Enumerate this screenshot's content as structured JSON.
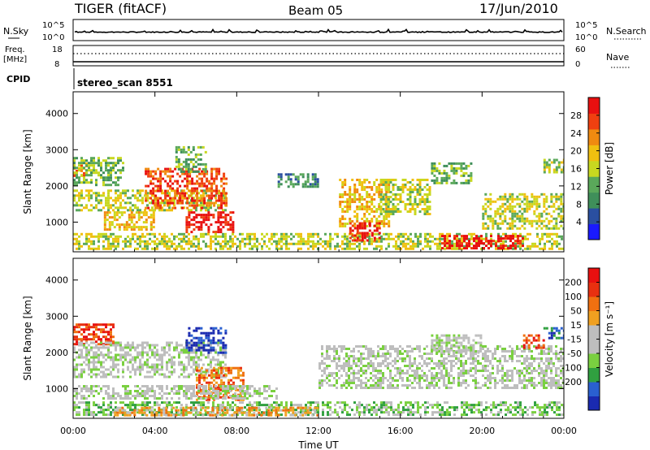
{
  "header": {
    "radar": "TIGER (fitACF)",
    "beam": "Beam 05",
    "date": "17/Jun/2010"
  },
  "top_panels": {
    "nsky_label": "N.Sky",
    "nsearch_label": "N.Search",
    "nsky_ticks": [
      "10^5",
      "10^0"
    ],
    "freq_label_1": "Freq.",
    "freq_label_2": "[MHz]",
    "freq_ticks": [
      "18",
      "8"
    ],
    "nave_label": "Nave",
    "nave_ticks": [
      "60",
      "0"
    ],
    "cpid_label": "CPID",
    "cpid_value": "stereo_scan 8551"
  },
  "colors": {
    "power": [
      "#1a1aff",
      "#2a4fa0",
      "#3f8f5a",
      "#5aa85a",
      "#c8d820",
      "#f0c010",
      "#f08a10",
      "#f04010",
      "#e81010"
    ],
    "velocity": [
      "#1a2ab0",
      "#2a60d0",
      "#30a040",
      "#7ad040",
      "#bebebe",
      "#bebebe",
      "#f0a020",
      "#f07010",
      "#e83010",
      "#e81010"
    ]
  },
  "chart_data": [
    {
      "type": "heatmap",
      "title": "",
      "xlabel": "Time UT",
      "ylabel": "Slant Range [km]",
      "x_ticks": [
        "00:00",
        "04:00",
        "08:00",
        "12:00",
        "16:00",
        "20:00",
        "00:00"
      ],
      "x_range_hours": [
        0,
        24
      ],
      "y_ticks": [
        1000,
        2000,
        3000,
        4000
      ],
      "ylim": [
        180,
        4600
      ],
      "colorbar": {
        "label": "Power [dB]",
        "ticks": [
          4,
          8,
          12,
          16,
          20,
          24,
          28
        ],
        "range": [
          0,
          32
        ]
      },
      "echo_regions": [
        {
          "t0": 0.0,
          "t1": 0.6,
          "r0": 2250,
          "r1": 2650,
          "level": 6
        },
        {
          "t0": 0.0,
          "t1": 2.5,
          "r0": 2050,
          "r1": 2800,
          "level": 3
        },
        {
          "t0": 0.0,
          "t1": 7.5,
          "r0": 1300,
          "r1": 1900,
          "level": 4
        },
        {
          "t0": 3.5,
          "t1": 7.5,
          "r0": 1400,
          "r1": 2500,
          "level": 7
        },
        {
          "t0": 1.5,
          "t1": 4.0,
          "r0": 800,
          "r1": 1300,
          "level": 5
        },
        {
          "t0": 5.5,
          "t1": 7.8,
          "r0": 700,
          "r1": 1300,
          "level": 8
        },
        {
          "t0": 0.0,
          "t1": 24.0,
          "r0": 250,
          "r1": 700,
          "level": 4
        },
        {
          "t0": 5.0,
          "t1": 6.5,
          "r0": 2400,
          "r1": 3100,
          "level": 3
        },
        {
          "t0": 10.0,
          "t1": 12.0,
          "r0": 2000,
          "r1": 2350,
          "level": 2
        },
        {
          "t0": 13.0,
          "t1": 15.5,
          "r0": 900,
          "r1": 2200,
          "level": 5
        },
        {
          "t0": 13.5,
          "t1": 15.0,
          "r0": 500,
          "r1": 1000,
          "level": 8
        },
        {
          "t0": 15.0,
          "t1": 17.5,
          "r0": 1200,
          "r1": 2200,
          "level": 4
        },
        {
          "t0": 17.5,
          "t1": 19.5,
          "r0": 2100,
          "r1": 2650,
          "level": 3
        },
        {
          "t0": 20.0,
          "t1": 24.0,
          "r0": 800,
          "r1": 1800,
          "level": 4
        },
        {
          "t0": 18.0,
          "t1": 22.0,
          "r0": 300,
          "r1": 650,
          "level": 8
        },
        {
          "t0": 23.0,
          "t1": 24.0,
          "r0": 2400,
          "r1": 2750,
          "level": 4
        }
      ]
    },
    {
      "type": "heatmap",
      "title": "",
      "xlabel": "Time UT",
      "ylabel": "Slant Range [km]",
      "x_ticks": [
        "00:00",
        "04:00",
        "08:00",
        "12:00",
        "16:00",
        "20:00",
        "00:00"
      ],
      "x_range_hours": [
        0,
        24
      ],
      "y_ticks": [
        1000,
        2000,
        3000,
        4000
      ],
      "ylim": [
        180,
        4600
      ],
      "colorbar": {
        "label": "Velocity [m s⁻¹]",
        "ticks": [
          200,
          100,
          50,
          15,
          -15,
          -50,
          -100,
          -200
        ],
        "range": [
          -250,
          250
        ]
      },
      "echo_regions": [
        {
          "t0": 0.0,
          "t1": 2.0,
          "r0": 2200,
          "r1": 2800,
          "level": 8
        },
        {
          "t0": 0.0,
          "t1": 7.5,
          "r0": 1300,
          "r1": 2300,
          "level": 4
        },
        {
          "t0": 5.5,
          "t1": 7.5,
          "r0": 2000,
          "r1": 2700,
          "level": 0
        },
        {
          "t0": 6.0,
          "t1": 8.3,
          "r0": 700,
          "r1": 1600,
          "level": 7
        },
        {
          "t0": 0.0,
          "t1": 24.0,
          "r0": 250,
          "r1": 650,
          "level": 3
        },
        {
          "t0": 0.0,
          "t1": 10.0,
          "r0": 700,
          "r1": 1100,
          "level": 4
        },
        {
          "t0": 12.0,
          "t1": 24.0,
          "r0": 1000,
          "r1": 2200,
          "level": 4
        },
        {
          "t0": 17.5,
          "t1": 20.0,
          "r0": 2000,
          "r1": 2500,
          "level": 4
        },
        {
          "t0": 2.0,
          "t1": 12.0,
          "r0": 250,
          "r1": 500,
          "level": 6
        },
        {
          "t0": 23.0,
          "t1": 24.0,
          "r0": 2400,
          "r1": 2700,
          "level": 1
        },
        {
          "t0": 22.0,
          "t1": 23.0,
          "r0": 2100,
          "r1": 2500,
          "level": 8
        }
      ]
    }
  ]
}
